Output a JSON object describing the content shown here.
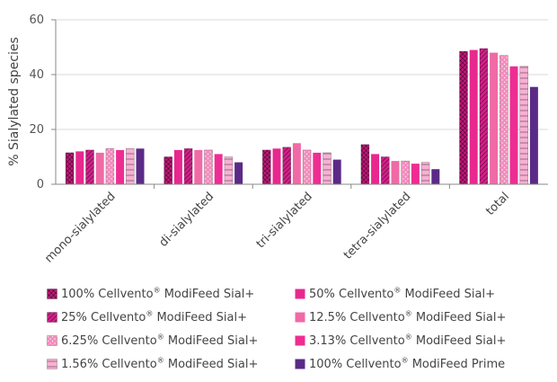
{
  "chart_data": {
    "type": "bar",
    "ylabel": "% Sialylated species",
    "xlabel": "",
    "ylim": [
      0,
      60
    ],
    "yticks": [
      0,
      20,
      40,
      60
    ],
    "categories": [
      "mono-sialylated",
      "di-sialylated",
      "tri-sialylated",
      "tetra-sialylated",
      "total"
    ],
    "series": [
      {
        "name": "100% Cellvento® ModiFeed Sial+",
        "color": "#c2187a",
        "pattern": "crosshatch",
        "values": [
          11.5,
          10,
          12.5,
          14.5,
          48.5
        ]
      },
      {
        "name": "50% Cellvento® ModiFeed Sial+",
        "color": "#e8288f",
        "pattern": "solid",
        "values": [
          12,
          12.5,
          13,
          11,
          49
        ]
      },
      {
        "name": "25% Cellvento® ModiFeed Sial+",
        "color": "#d4208a",
        "pattern": "diagonal",
        "values": [
          12.5,
          13,
          13.5,
          10,
          49.5
        ]
      },
      {
        "name": "12.5% Cellvento® ModiFeed Sial+",
        "color": "#f06aa6",
        "pattern": "solid",
        "values": [
          11.5,
          12.5,
          15,
          8.5,
          48
        ]
      },
      {
        "name": "6.25% Cellvento® ModiFeed Sial+",
        "color": "#f28cbc",
        "pattern": "dots",
        "values": [
          13,
          12.5,
          12.5,
          8.5,
          47
        ]
      },
      {
        "name": "3.13% Cellvento® ModiFeed Sial+",
        "color": "#ee2d93",
        "pattern": "solid",
        "values": [
          12.5,
          11,
          11.5,
          7.5,
          43
        ]
      },
      {
        "name": "1.56% Cellvento® ModiFeed Sial+",
        "color": "#f7b0d3",
        "pattern": "hlines",
        "values": [
          13,
          10,
          11.5,
          8,
          43
        ]
      },
      {
        "name": "100% Cellvento® ModiFeed Prime",
        "color": "#5b2a86",
        "pattern": "solid",
        "values": [
          13,
          8,
          9,
          5.5,
          35.5
        ]
      }
    ]
  },
  "legend": {
    "items": [
      {
        "prefix": "100% Cellvento",
        "mark": "®",
        "suffix": " ModiFeed Sial+"
      },
      {
        "prefix": "50% Cellvento",
        "mark": "®",
        "suffix": " ModiFeed Sial+"
      },
      {
        "prefix": "25% Cellvento",
        "mark": "®",
        "suffix": " ModiFeed Sial+"
      },
      {
        "prefix": "12.5% Cellvento",
        "mark": "®",
        "suffix": " ModiFeed Sial+"
      },
      {
        "prefix": "6.25% Cellvento",
        "mark": "®",
        "suffix": " ModiFeed Sial+"
      },
      {
        "prefix": "3.13% Cellvento",
        "mark": "®",
        "suffix": " ModiFeed Sial+"
      },
      {
        "prefix": "1.56% Cellvento",
        "mark": "®",
        "suffix": " ModiFeed Sial+"
      },
      {
        "prefix": "100% Cellvento",
        "mark": "®",
        "suffix": " ModiFeed Prime"
      }
    ]
  }
}
